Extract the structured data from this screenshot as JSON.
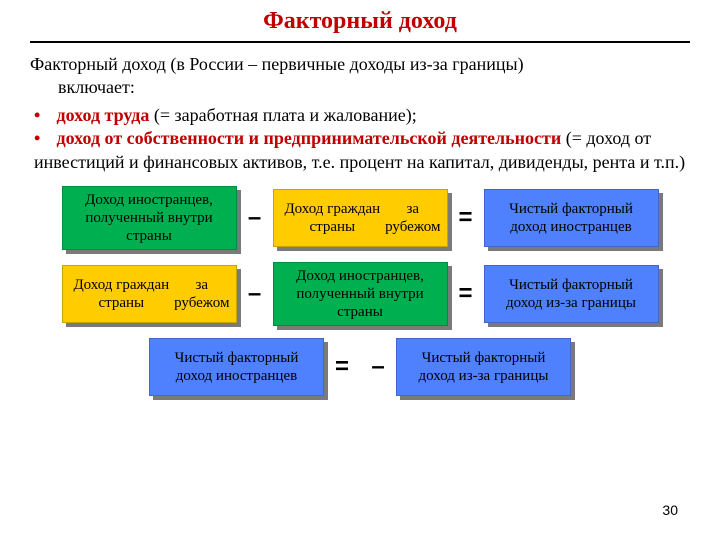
{
  "title": {
    "text": "Факторный доход",
    "color": "#c00000",
    "fontsize": 24
  },
  "intro": {
    "line1": "Факторный доход (в России – первичные доходы из-за границы)",
    "line2": "включает:"
  },
  "bullets": [
    {
      "highlight": "доход труда",
      "rest": " (= заработная плата и жалование);"
    },
    {
      "highlight": "доход от собственности и предпринимательской деятельности",
      "rest": " (= доход от инвестиций и финансовых активов, т.е. процент на капитал, дивиденды, рента и т.п.)"
    }
  ],
  "colors": {
    "green": "#00b050",
    "yellow": "#ffcc00",
    "blue": "#4f81ff",
    "shadow": "#7a7a7a",
    "red": "#c00000"
  },
  "boxes": {
    "foreign_in": "Доход иностранцев, полученный внутри страны",
    "citizens_abroad": "Доход граждан страны\nза рубежом",
    "net_foreign": "Чистый факторный доход иностранцев",
    "net_abroad": "Чистый факторный доход из-за границы"
  },
  "rows": [
    {
      "cells": [
        {
          "key": "foreign_in",
          "color": "green"
        },
        {
          "op": "–"
        },
        {
          "key": "citizens_abroad",
          "color": "yellow"
        },
        {
          "op": "="
        },
        {
          "key": "net_foreign",
          "color": "blue"
        }
      ]
    },
    {
      "cells": [
        {
          "key": "citizens_abroad",
          "color": "yellow"
        },
        {
          "op": "–"
        },
        {
          "key": "foreign_in",
          "color": "green"
        },
        {
          "op": "="
        },
        {
          "key": "net_abroad",
          "color": "blue"
        }
      ]
    },
    {
      "cells": [
        {
          "key": "net_foreign",
          "color": "blue"
        },
        {
          "op": "="
        },
        {
          "op": "–"
        },
        {
          "key": "net_abroad",
          "color": "blue"
        }
      ]
    }
  ],
  "page_number": "30"
}
